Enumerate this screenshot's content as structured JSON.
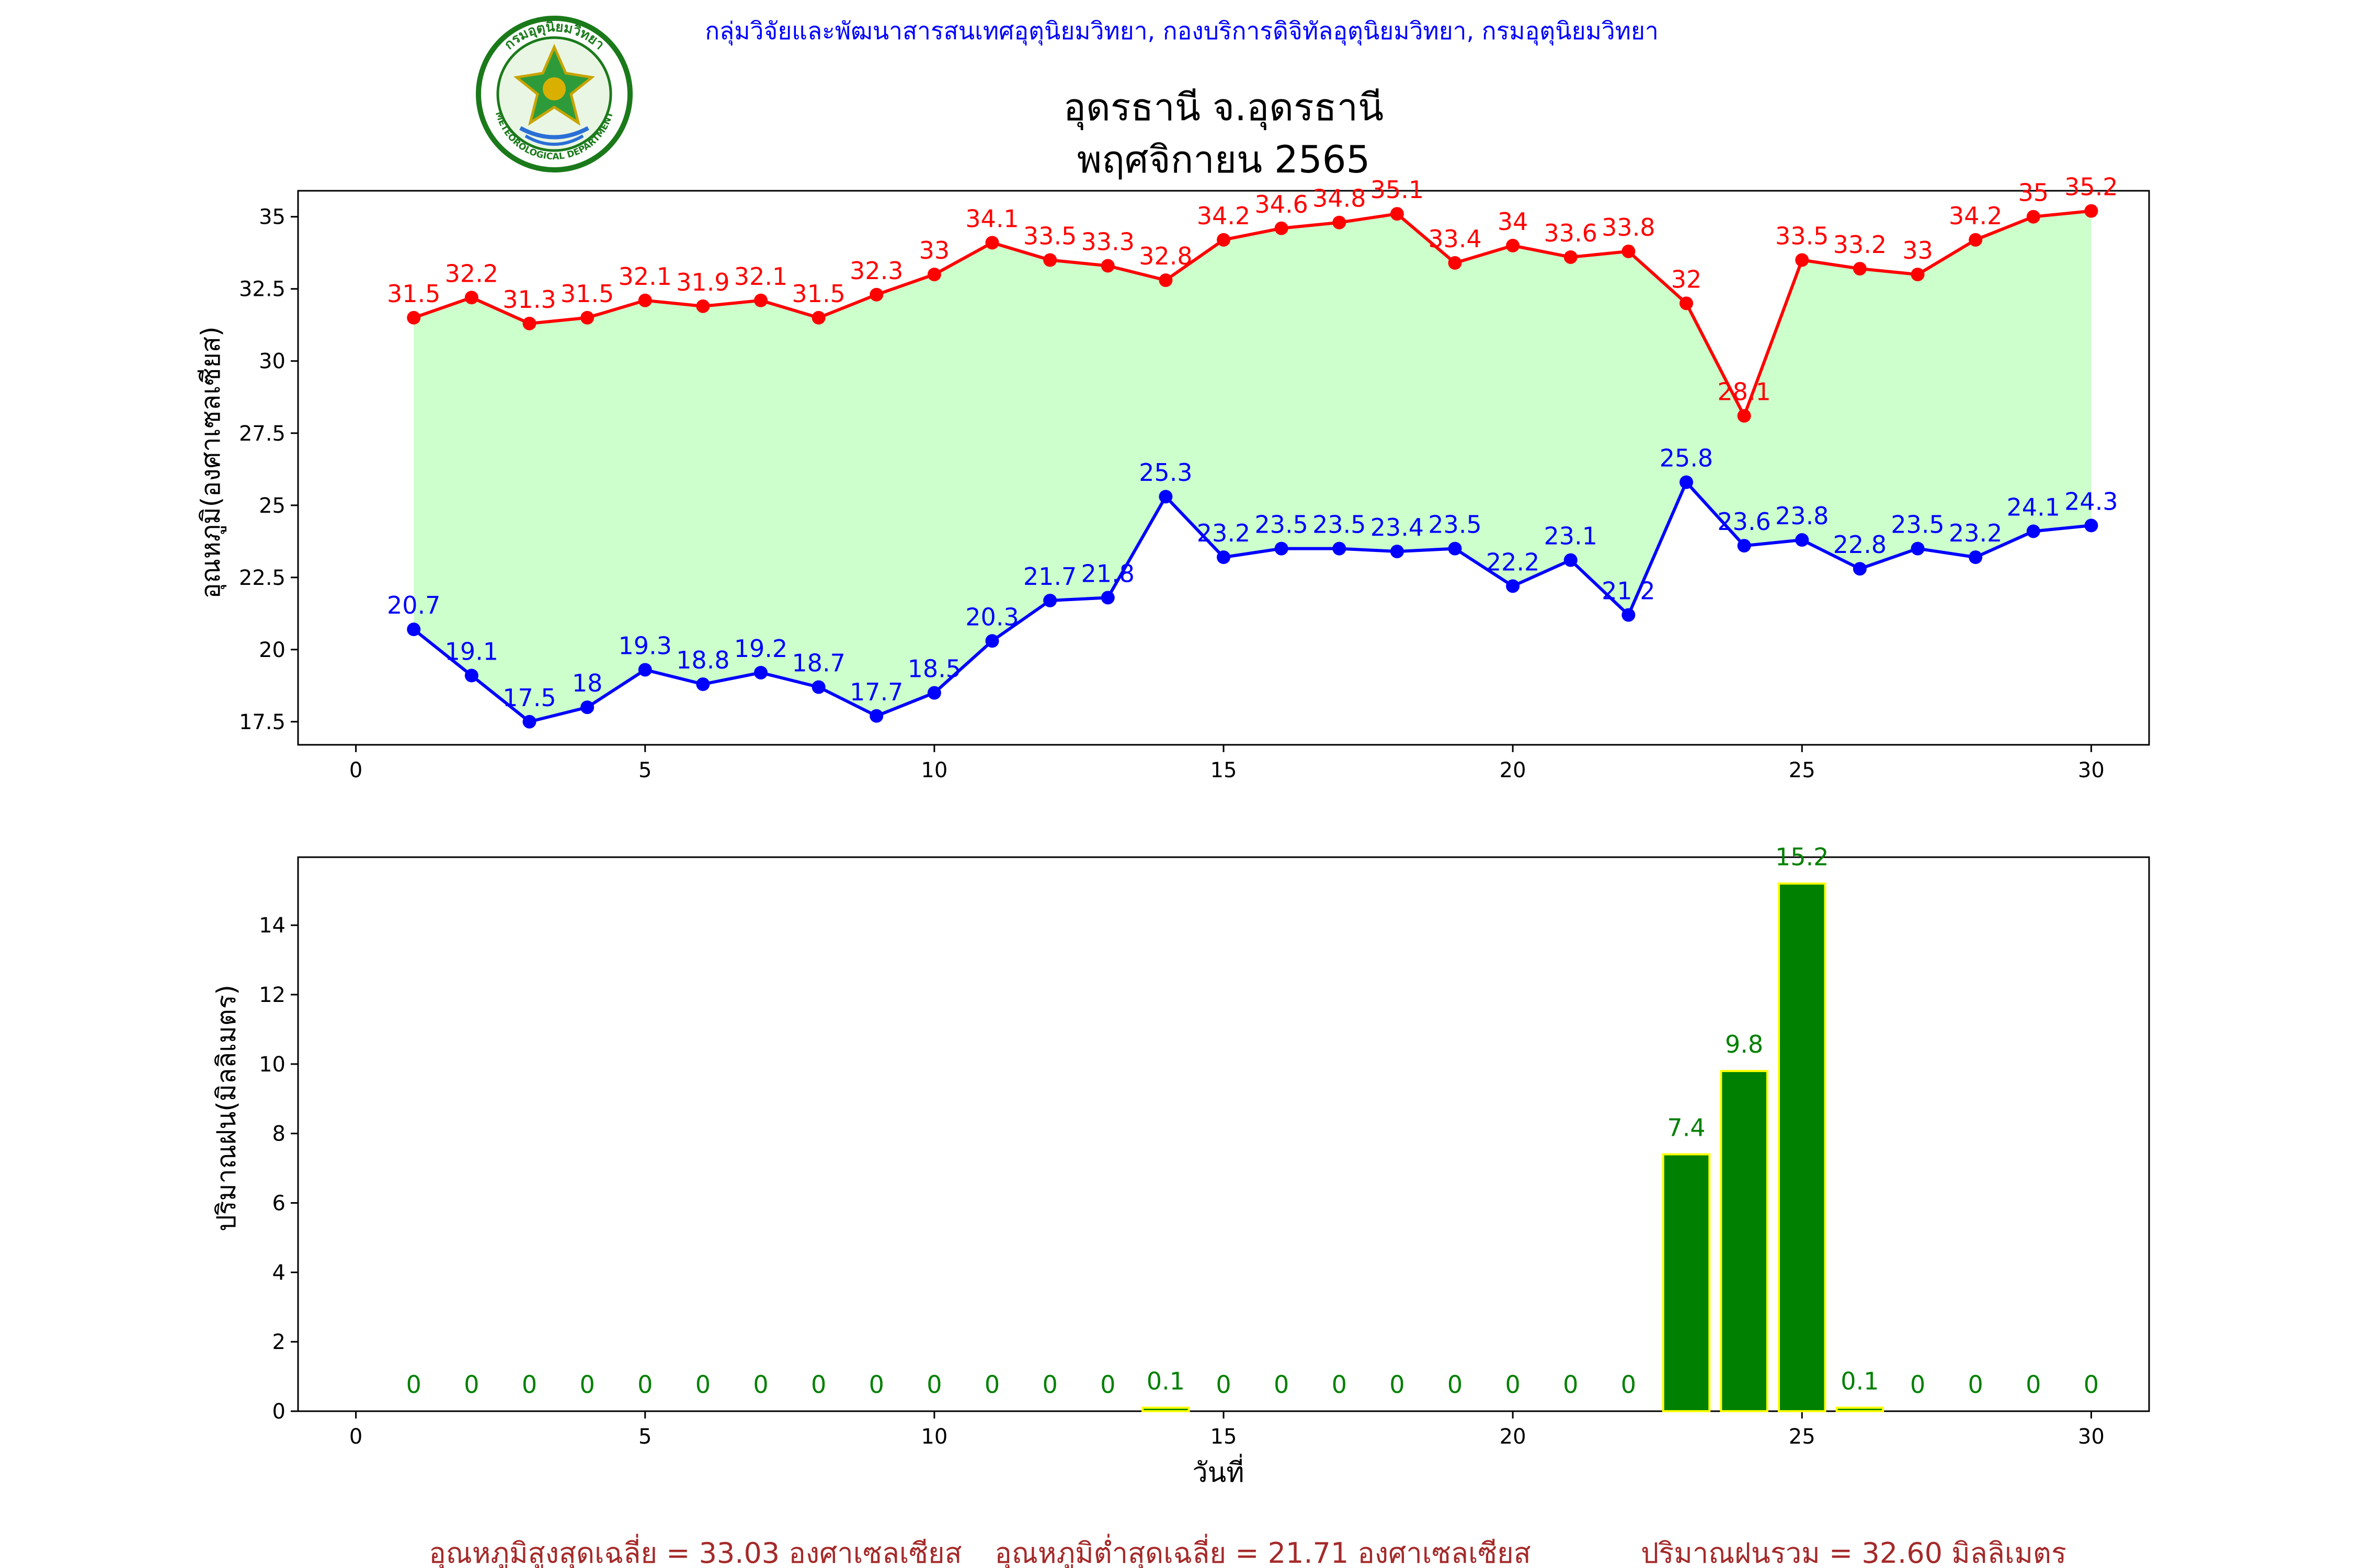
{
  "header": {
    "agency": "กลุ่มวิจัยและพัฒนาสารสนเทศอุตุนิยมวิทยา, กองบริการดิจิทัลอุตุนิยมวิทยา, กรมอุตุนิยมวิทยา",
    "title_line1": "อุดรธานี จ.อุดรธานี",
    "title_line2": "พฤศจิกายน 2565",
    "logo_text_top": "กรมอุตุนิยมวิทยา",
    "logo_text_bottom": "METEOROLOGICAL DEPARTMENT"
  },
  "colors": {
    "max_line": "#ff0000",
    "min_line": "#0000ff",
    "fill": "#ccffcc",
    "rain_bar": "#008000",
    "rain_edge": "#ffff00",
    "rain_label": "#008000",
    "agency_text": "#0000ff",
    "summary_text": "#a52a2a"
  },
  "chart_data": [
    {
      "type": "line",
      "ylabel": "อุณหภูมิ(องศาเซลเซียส)",
      "xlabel": "",
      "xlim": [
        -1,
        31
      ],
      "ylim": [
        16.7,
        35.9
      ],
      "xticks": [
        0,
        5,
        10,
        15,
        20,
        25,
        30
      ],
      "yticks": [
        17.5,
        20.0,
        22.5,
        25.0,
        27.5,
        30.0,
        32.5,
        35.0
      ],
      "x": [
        1,
        2,
        3,
        4,
        5,
        6,
        7,
        8,
        9,
        10,
        11,
        12,
        13,
        14,
        15,
        16,
        17,
        18,
        19,
        20,
        21,
        22,
        23,
        24,
        25,
        26,
        27,
        28,
        29,
        30
      ],
      "series": [
        {
          "key": "max",
          "values": [
            31.5,
            32.2,
            31.3,
            31.5,
            32.1,
            31.9,
            32.1,
            31.5,
            32.3,
            33.0,
            34.1,
            33.5,
            33.3,
            32.8,
            34.2,
            34.6,
            34.8,
            35.1,
            33.4,
            34.0,
            33.6,
            33.8,
            32.0,
            28.1,
            33.5,
            33.2,
            33.0,
            34.2,
            35.0,
            35.2
          ]
        },
        {
          "key": "min",
          "values": [
            20.7,
            19.1,
            17.5,
            18.0,
            19.3,
            18.8,
            19.2,
            18.7,
            17.7,
            18.5,
            20.3,
            21.7,
            21.8,
            25.3,
            23.2,
            23.5,
            23.5,
            23.4,
            23.5,
            22.2,
            23.1,
            21.2,
            25.8,
            23.6,
            23.8,
            22.8,
            23.5,
            23.2,
            24.1,
            24.3
          ]
        }
      ],
      "grid": false
    },
    {
      "type": "bar",
      "ylabel": "ปริมาณฝน(มิลลิเมตร)",
      "xlabel": "วันที่",
      "xlim": [
        -1,
        31
      ],
      "ylim": [
        0,
        15.96
      ],
      "xticks": [
        0,
        5,
        10,
        15,
        20,
        25,
        30
      ],
      "yticks": [
        0,
        2,
        4,
        6,
        8,
        10,
        12,
        14
      ],
      "x": [
        1,
        2,
        3,
        4,
        5,
        6,
        7,
        8,
        9,
        10,
        11,
        12,
        13,
        14,
        15,
        16,
        17,
        18,
        19,
        20,
        21,
        22,
        23,
        24,
        25,
        26,
        27,
        28,
        29,
        30
      ],
      "values": [
        0.0,
        0.0,
        0.0,
        0.0,
        0.0,
        0.0,
        0.0,
        0.0,
        0.0,
        0.0,
        0.0,
        0.0,
        0.0,
        0.1,
        0.0,
        0.0,
        0.0,
        0.0,
        0.0,
        0.0,
        0.0,
        0.0,
        7.4,
        9.8,
        15.2,
        0.1,
        0.0,
        0.0,
        0.0,
        0.0
      ],
      "grid": false
    }
  ],
  "summary": {
    "avg_max": "อุณหภูมิสูงสุดเฉลี่ย = 33.03 องศาเซลเซียส",
    "avg_min": "อุณหภูมิต่ำสุดเฉลี่ย = 21.71 องศาเซลเซียส",
    "total_rain": "ปริมาณฝนรวม = 32.60 มิลลิเมตร"
  }
}
